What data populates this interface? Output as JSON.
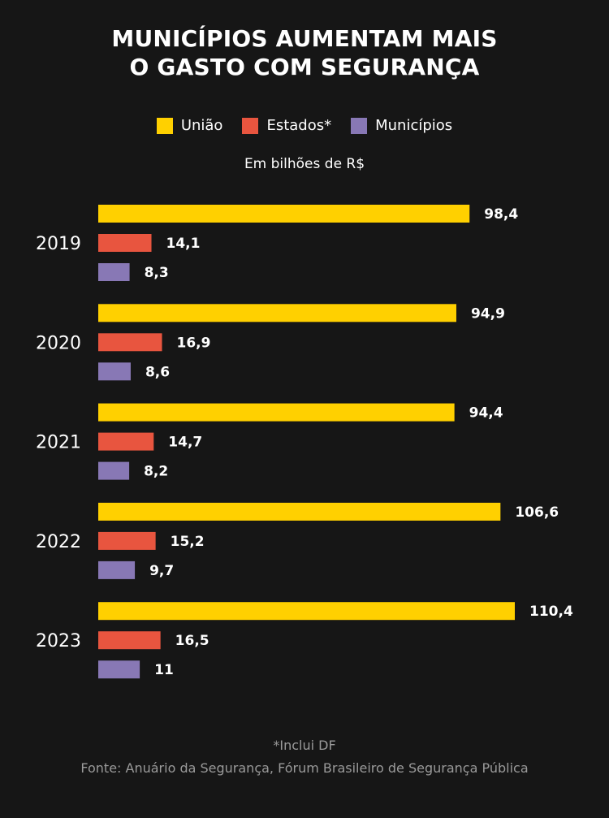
{
  "title_line1": "MUNICÍPIOS AUMENTAM MAIS",
  "title_line2": "O GASTO COM SEGURANÇA",
  "unit": "Em bilhões de R$",
  "footnote": "*Inclui DF",
  "source": "Fonte: Anuário da Segurança, Fórum Brasileiro de Segurança Pública",
  "colors": {
    "uniao": "#ffd000",
    "estados": "#e8553f",
    "municipios": "#8878b5",
    "background": "#161616"
  },
  "legend": [
    {
      "label": "União",
      "color": "#ffd000"
    },
    {
      "label": "Estados*",
      "color": "#e8553f"
    },
    {
      "label": "Municípios",
      "color": "#8878b5"
    }
  ],
  "chart_data": {
    "type": "bar",
    "orientation": "horizontal",
    "title": "MUNICÍPIOS AUMENTAM MAIS O GASTO COM SEGURANÇA",
    "subtitle": "Em bilhões de R$",
    "categories": [
      "2019",
      "2020",
      "2021",
      "2022",
      "2023"
    ],
    "series": [
      {
        "name": "União",
        "color": "#ffd000",
        "values": [
          98.4,
          94.9,
          94.4,
          106.6,
          110.4
        ],
        "labels": [
          "98,4",
          "94,9",
          "94,4",
          "106,6",
          "110,4"
        ]
      },
      {
        "name": "Estados*",
        "color": "#e8553f",
        "values": [
          14.1,
          16.9,
          14.7,
          15.2,
          16.5
        ],
        "labels": [
          "14,1",
          "16,9",
          "14,7",
          "15,2",
          "16,5"
        ]
      },
      {
        "name": "Municípios",
        "color": "#8878b5",
        "values": [
          8.3,
          8.6,
          8.2,
          9.7,
          11
        ],
        "labels": [
          "8,3",
          "8,6",
          "8,2",
          "9,7",
          "11"
        ]
      }
    ],
    "xlim": [
      0,
      110.4
    ],
    "grid": false,
    "legend_position": "top"
  }
}
